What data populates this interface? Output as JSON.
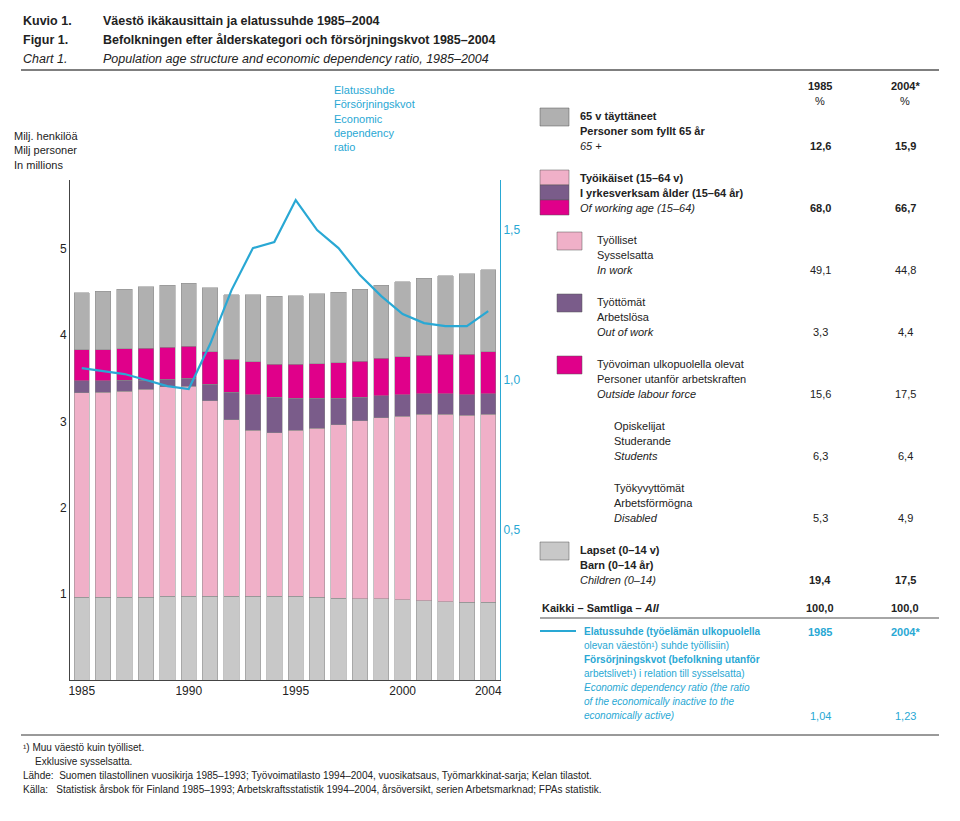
{
  "chart_data": {
    "type": "bar",
    "stacked": true,
    "grid": false,
    "title": [
      "Kuvio 1.",
      "Väestö ikäkausittain ja elatussuhde 1985–2004"
    ],
    "subtitle": [
      [
        "Figur 1.",
        "Befolkningen efter ålderskategori och försörjningskvot 1985–2004"
      ],
      [
        "Chart 1.",
        "Population age structure and economic dependency ratio, 1985–2004"
      ]
    ],
    "x": [
      1985,
      1986,
      1987,
      1988,
      1989,
      1990,
      1991,
      1992,
      1993,
      1994,
      1995,
      1996,
      1997,
      1998,
      1999,
      2000,
      2001,
      2002,
      2003,
      2004
    ],
    "xlim": [
      1984.45,
      2004.55
    ],
    "xticks": [
      1985,
      1990,
      1995,
      2000,
      2004
    ],
    "ylim": [
      0,
      5.8
    ],
    "yticks": [
      1,
      2,
      3,
      4,
      5
    ],
    "y2lim": [
      0,
      1.667
    ],
    "y2ticks": [
      {
        "value": 0.5,
        "label": "0,5"
      },
      {
        "value": 1.0,
        "label": "1,0"
      },
      {
        "value": 1.5,
        "label": "1,5"
      }
    ],
    "ylabel": [
      "Milj. henkilöä",
      "Milj personer",
      "In millions"
    ],
    "y2label": [
      "Elatussuhde",
      "Försörjningskvot",
      "Economic",
      "dependency",
      "ratio"
    ],
    "series": [
      {
        "color": "#c8c8c8",
        "values": [
          0.96,
          0.96,
          0.96,
          0.96,
          0.97,
          0.97,
          0.97,
          0.97,
          0.97,
          0.97,
          0.97,
          0.96,
          0.95,
          0.94,
          0.94,
          0.93,
          0.92,
          0.91,
          0.9,
          0.9
        ]
      },
      {
        "color": "#f0b0c8",
        "values": [
          2.37,
          2.38,
          2.39,
          2.41,
          2.43,
          2.44,
          2.27,
          2.05,
          1.93,
          1.9,
          1.93,
          1.96,
          2.01,
          2.07,
          2.1,
          2.13,
          2.16,
          2.17,
          2.17,
          2.18
        ]
      },
      {
        "color": "#7a5c8a",
        "values": [
          0.14,
          0.13,
          0.13,
          0.11,
          0.09,
          0.09,
          0.19,
          0.32,
          0.41,
          0.41,
          0.37,
          0.35,
          0.31,
          0.27,
          0.26,
          0.25,
          0.24,
          0.24,
          0.24,
          0.24
        ]
      },
      {
        "color": "#e0008a",
        "values": [
          0.36,
          0.36,
          0.36,
          0.37,
          0.37,
          0.37,
          0.38,
          0.38,
          0.38,
          0.38,
          0.39,
          0.4,
          0.41,
          0.42,
          0.43,
          0.44,
          0.45,
          0.46,
          0.47,
          0.49
        ]
      },
      {
        "color": "#b0b0b0",
        "values": [
          0.66,
          0.68,
          0.69,
          0.71,
          0.72,
          0.73,
          0.74,
          0.75,
          0.78,
          0.79,
          0.8,
          0.81,
          0.82,
          0.83,
          0.85,
          0.87,
          0.89,
          0.91,
          0.93,
          0.95
        ]
      },
      {
        "type": "line",
        "axis": "y2",
        "color": "#29a8d4",
        "values": [
          1.04,
          1.03,
          1.02,
          1.0,
          0.98,
          0.97,
          1.12,
          1.3,
          1.44,
          1.46,
          1.6,
          1.5,
          1.44,
          1.35,
          1.28,
          1.22,
          1.19,
          1.18,
          1.18,
          1.23
        ]
      }
    ],
    "annotations": {
      "legend_table": {
        "columns": [
          "1985",
          "2004*"
        ],
        "unit": "%",
        "rows": [
          {
            "colors": [
              "#b0b0b0"
            ],
            "lines": [
              "65 v täyttäneet",
              "Personer som fyllt 65 år",
              "65 +"
            ],
            "values": [
              12.6,
              15.9
            ],
            "value_labels": [
              "12,6",
              "15,9"
            ]
          },
          {
            "colors": [
              "#f0b0c8",
              "#7a5c8a",
              "#e0008a"
            ],
            "lines": [
              "Työikäiset (15–64 v)",
              "I yrkesverksam ålder (15–64 år)",
              "Of working age (15–64)"
            ],
            "values": [
              68.0,
              66.7
            ],
            "value_labels": [
              "68,0",
              "66,7"
            ]
          },
          {
            "colors": [
              "#f0b0c8"
            ],
            "lines": [
              "Työlliset",
              "Sysselsatta",
              "In work"
            ],
            "values": [
              49.1,
              44.8
            ],
            "value_labels": [
              "49,1",
              "44,8"
            ]
          },
          {
            "colors": [
              "#7a5c8a"
            ],
            "lines": [
              "Työttömät",
              "Arbetslösa",
              "Out of work"
            ],
            "values": [
              3.3,
              4.4
            ],
            "value_labels": [
              "3,3",
              "4,4"
            ]
          },
          {
            "colors": [
              "#e0008a"
            ],
            "lines": [
              "Työvoiman ulkopuolella olevat",
              "Personer utanför arbetskraften",
              "Outside labour force"
            ],
            "values": [
              15.6,
              17.5
            ],
            "value_labels": [
              "15,6",
              "17,5"
            ]
          },
          {
            "colors": [],
            "lines": [
              "Opiskelijat",
              "Studerande",
              "Students"
            ],
            "values": [
              6.3,
              6.4
            ],
            "value_labels": [
              "6,3",
              "6,4"
            ]
          },
          {
            "colors": [],
            "lines": [
              "Työkyvyttömät",
              "Arbetsförmögna",
              "Disabled"
            ],
            "values": [
              5.3,
              4.9
            ],
            "value_labels": [
              "5,3",
              "4,9"
            ]
          },
          {
            "colors": [
              "#c8c8c8"
            ],
            "lines": [
              "Lapset (0–14 v)",
              "Barn (0–14 år)",
              "Children (0–14)"
            ],
            "values": [
              19.4,
              17.5
            ],
            "value_labels": [
              "19,4",
              "17,5"
            ]
          }
        ],
        "total": {
          "text": [
            "Kaikki – Samtliga –",
            "All"
          ],
          "values": [
            100.0,
            100.0
          ],
          "value_labels": [
            "100,0",
            "100,0"
          ]
        }
      },
      "dependency": {
        "columns": [
          "1985",
          "2004*"
        ],
        "lines": [
          "Elatussuhde (työelämän ulkopuolella",
          "olevan väestön¹) suhde työllisiin)",
          "Försörjningskvot (befolkning utanför",
          "arbetslivet¹) i relation till sysselsatta)",
          "Economic dependency ratio (the ratio",
          "of the economically inactive to the",
          "economically active)"
        ],
        "values": [
          1.04,
          1.23
        ],
        "value_labels": [
          "1,04",
          "1,23"
        ]
      },
      "footnotes": [
        "¹) Muu väestö kuin työlliset.",
        "Exklusive sysselsatta.",
        "Lähde:  Suomen tilastollinen vuosikirja 1985–1993; Työvoimatilasto 1994–2004, vuosikatsaus, Työmarkkinat-sarja; Kelan tilastot.",
        "Källa:   Statistisk årsbok för Finland 1985–1993; Arbetskraftsstatistik 1994–2004, årsöversikt, serien Arbetsmarknad; FPAs statistik."
      ]
    }
  }
}
